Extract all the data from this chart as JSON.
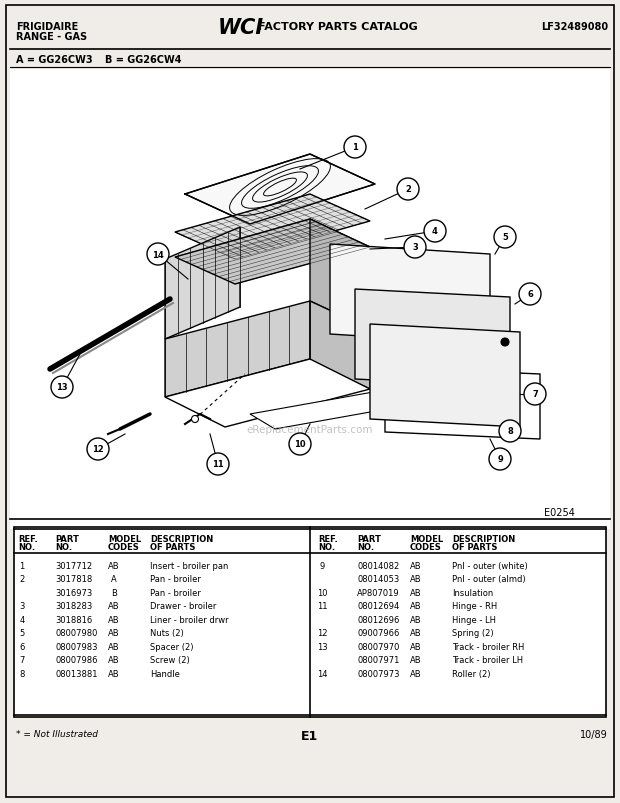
{
  "title_left1": "FRIGIDAIRE",
  "title_left2": "RANGE - GAS",
  "title_right": "LF32489080",
  "model_line1": "A = GG26CW3",
  "model_line2": "B = GG26CW4",
  "diagram_code": "E0254",
  "footer_left": "* = Not Illustrated",
  "footer_center": "E1",
  "footer_right": "10/89",
  "page_color": "#f0ede8",
  "parts_left": [
    [
      "1",
      "3017712",
      "AB",
      "Insert - broiler pan"
    ],
    [
      "2",
      "3017818",
      "A",
      "Pan - broiler"
    ],
    [
      "",
      "3016973",
      "B",
      "Pan - broiler"
    ],
    [
      "3",
      "3018283",
      "AB",
      "Drawer - broiler"
    ],
    [
      "4",
      "3018816",
      "AB",
      "Liner - broiler drwr"
    ],
    [
      "5",
      "08007980",
      "AB",
      "Nuts (2)"
    ],
    [
      "6",
      "08007983",
      "AB",
      "Spacer (2)"
    ],
    [
      "7",
      "08007986",
      "AB",
      "Screw (2)"
    ],
    [
      "8",
      "08013881",
      "AB",
      "Handle"
    ]
  ],
  "parts_right": [
    [
      "9",
      "08014082",
      "AB",
      "Pnl - outer (white)"
    ],
    [
      "",
      "08014053",
      "AB",
      "Pnl - outer (almd)"
    ],
    [
      "10",
      "AP807019",
      "AB",
      "Insulation"
    ],
    [
      "11",
      "08012694",
      "AB",
      "Hinge - RH"
    ],
    [
      "",
      "08012696",
      "AB",
      "Hinge - LH"
    ],
    [
      "12",
      "09007966",
      "AB",
      "Spring (2)"
    ],
    [
      "13",
      "08007970",
      "AB",
      "Track - broiler RH"
    ],
    [
      "",
      "08007971",
      "AB",
      "Track - broiler LH"
    ],
    [
      "14",
      "08007973",
      "AB",
      "Roller (2)"
    ]
  ]
}
